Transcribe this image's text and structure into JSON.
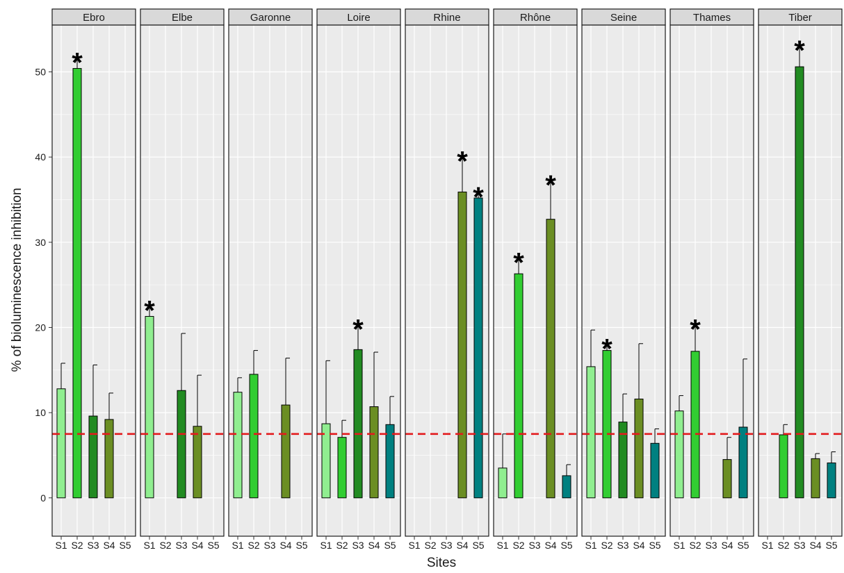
{
  "chart_data": {
    "type": "bar",
    "layout": "faceted",
    "xlabel": "Sites",
    "ylabel": "% of bioluminescence inhibition",
    "ylim": [
      -4.5,
      55.5
    ],
    "yticks": [
      0,
      10,
      20,
      30,
      40,
      50
    ],
    "categories": [
      "S1",
      "S2",
      "S3",
      "S4",
      "S5"
    ],
    "threshold": {
      "value": 7.5,
      "color": "#e31a1c",
      "style": "dashed"
    },
    "significance_marker": "*",
    "colors": {
      "S1": "#90ee90",
      "S2": "#32cd32",
      "S3": "#228b22",
      "S4": "#6b8e23",
      "S5": "#008080",
      "panel_bg": "#ebebeb",
      "strip_bg": "#d9d9d9"
    },
    "facets": [
      {
        "name": "Ebro",
        "bars": [
          {
            "site": "S1",
            "value": 12.8,
            "error": 3.0,
            "sig": false
          },
          {
            "site": "S2",
            "value": 50.4,
            "error": 1.4,
            "sig": true
          },
          {
            "site": "S3",
            "value": 9.6,
            "error": 6.0,
            "sig": false
          },
          {
            "site": "S4",
            "value": 9.2,
            "error": 3.1,
            "sig": false
          }
        ]
      },
      {
        "name": "Elbe",
        "bars": [
          {
            "site": "S1",
            "value": 21.3,
            "error": 1.4,
            "sig": true
          },
          {
            "site": "S3",
            "value": 12.6,
            "error": 6.7,
            "sig": false
          },
          {
            "site": "S4",
            "value": 8.4,
            "error": 6.0,
            "sig": false
          }
        ]
      },
      {
        "name": "Garonne",
        "bars": [
          {
            "site": "S1",
            "value": 12.4,
            "error": 1.7,
            "sig": false
          },
          {
            "site": "S2",
            "value": 14.5,
            "error": 2.8,
            "sig": false
          },
          {
            "site": "S4",
            "value": 10.9,
            "error": 5.5,
            "sig": false
          }
        ]
      },
      {
        "name": "Loire",
        "bars": [
          {
            "site": "S1",
            "value": 8.7,
            "error": 7.4,
            "sig": false
          },
          {
            "site": "S2",
            "value": 7.1,
            "error": 2.0,
            "sig": false
          },
          {
            "site": "S3",
            "value": 17.4,
            "error": 3.1,
            "sig": true
          },
          {
            "site": "S4",
            "value": 10.7,
            "error": 6.4,
            "sig": false
          },
          {
            "site": "S5",
            "value": 8.6,
            "error": 3.3,
            "sig": false
          }
        ]
      },
      {
        "name": "Rhine",
        "bars": [
          {
            "site": "S4",
            "value": 35.9,
            "error": 4.3,
            "sig": true
          },
          {
            "site": "S5",
            "value": 35.2,
            "error": 0.8,
            "sig": true
          }
        ]
      },
      {
        "name": "Rhône",
        "bars": [
          {
            "site": "S1",
            "value": 3.5,
            "error": 4.0,
            "sig": false
          },
          {
            "site": "S2",
            "value": 26.3,
            "error": 2.0,
            "sig": true
          },
          {
            "site": "S4",
            "value": 32.7,
            "error": 4.7,
            "sig": true
          },
          {
            "site": "S5",
            "value": 2.6,
            "error": 1.3,
            "sig": false
          }
        ]
      },
      {
        "name": "Seine",
        "bars": [
          {
            "site": "S1",
            "value": 15.4,
            "error": 4.3,
            "sig": false
          },
          {
            "site": "S2",
            "value": 17.3,
            "error": 0.9,
            "sig": true
          },
          {
            "site": "S3",
            "value": 8.9,
            "error": 3.3,
            "sig": false
          },
          {
            "site": "S4",
            "value": 11.6,
            "error": 6.5,
            "sig": false
          },
          {
            "site": "S5",
            "value": 6.4,
            "error": 1.7,
            "sig": false
          }
        ]
      },
      {
        "name": "Thames",
        "bars": [
          {
            "site": "S1",
            "value": 10.2,
            "error": 1.8,
            "sig": false
          },
          {
            "site": "S2",
            "value": 17.2,
            "error": 3.3,
            "sig": true
          },
          {
            "site": "S4",
            "value": 4.5,
            "error": 2.6,
            "sig": false
          },
          {
            "site": "S5",
            "value": 8.3,
            "error": 8.0,
            "sig": false
          }
        ]
      },
      {
        "name": "Tiber",
        "bars": [
          {
            "site": "S2",
            "value": 7.4,
            "error": 1.2,
            "sig": false
          },
          {
            "site": "S3",
            "value": 50.6,
            "error": 2.6,
            "sig": true
          },
          {
            "site": "S4",
            "value": 4.6,
            "error": 0.6,
            "sig": false
          },
          {
            "site": "S5",
            "value": 4.1,
            "error": 1.3,
            "sig": false
          }
        ]
      }
    ]
  }
}
